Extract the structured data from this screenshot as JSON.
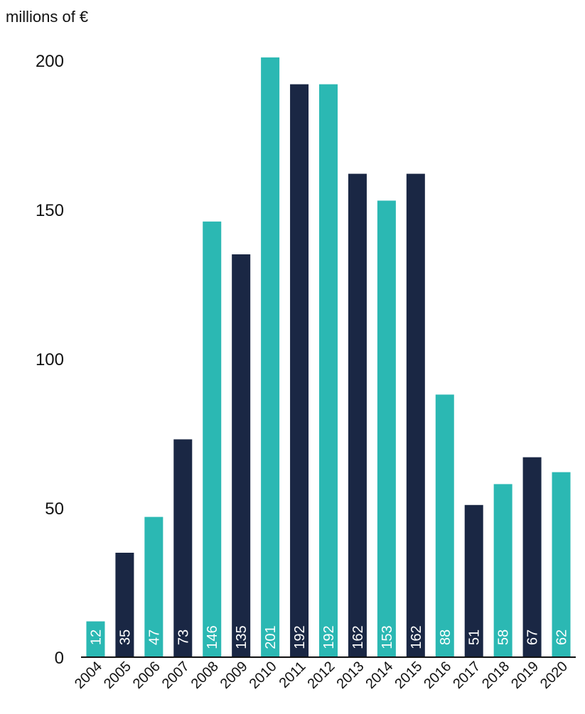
{
  "chart_data": {
    "type": "bar",
    "ylabel": "millions of €",
    "xlabel": "",
    "ylim": [
      0,
      200
    ],
    "yticks": [
      0,
      50,
      100,
      150,
      200
    ],
    "categories": [
      "2004",
      "2005",
      "2006",
      "2007",
      "2008",
      "2009",
      "2010",
      "2011",
      "2012",
      "2013",
      "2014",
      "2015",
      "2016",
      "2017",
      "2018",
      "2019",
      "2020"
    ],
    "values": [
      12,
      35,
      47,
      73,
      146,
      135,
      201,
      192,
      192,
      162,
      153,
      162,
      88,
      51,
      58,
      67,
      62
    ],
    "data_labels": [
      "12",
      "35",
      "47",
      "73",
      "146",
      "135",
      "201",
      "192",
      "192",
      "162",
      "153",
      "162",
      "88",
      "51",
      "58",
      "67",
      "62"
    ],
    "bar_colors": [
      "#2bb8b3",
      "#1a2744",
      "#2bb8b3",
      "#1a2744",
      "#2bb8b3",
      "#1a2744",
      "#2bb8b3",
      "#1a2744",
      "#2bb8b3",
      "#1a2744",
      "#2bb8b3",
      "#1a2744",
      "#2bb8b3",
      "#1a2744",
      "#2bb8b3",
      "#1a2744",
      "#2bb8b3"
    ],
    "colors": {
      "teal": "#2bb8b3",
      "navy": "#1a2744",
      "axis": "#111111",
      "label_text": "#ffffff"
    },
    "grid": false,
    "legend": "none"
  }
}
